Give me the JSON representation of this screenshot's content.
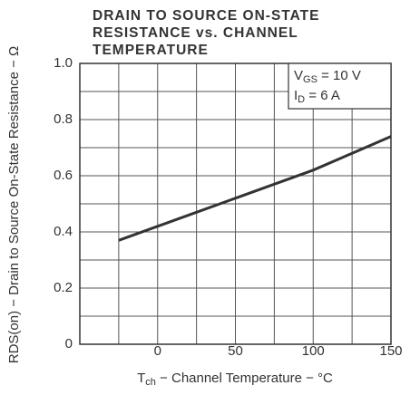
{
  "chart_data": {
    "type": "line",
    "title": [
      "DRAIN TO SOURCE ON-STATE",
      "RESISTANCE vs. CHANNEL",
      "TEMPERATURE"
    ],
    "xlabel": {
      "main": "T",
      "sub": "ch",
      "rest": " − Channel Temperature − °C"
    },
    "ylabel": "RDS(on) − Drain to Source On-State Resistance − Ω",
    "annotations": [
      {
        "main": "V",
        "sub": "GS",
        "rest": " = 10  V"
      },
      {
        "main": "I",
        "sub": "D",
        "rest": " = 6  A"
      }
    ],
    "x": [
      -25,
      0,
      25,
      50,
      75,
      100,
      125,
      150
    ],
    "series": [
      {
        "color": "#333333",
        "values": [
          0.37,
          0.42,
          0.47,
          0.52,
          0.57,
          0.62,
          0.68,
          0.74
        ]
      }
    ],
    "xlim": [
      -50,
      150
    ],
    "xticks": [
      0,
      50,
      100,
      150
    ],
    "xgrid": [
      -25,
      25,
      75,
      125
    ],
    "ylim": [
      0,
      1.0
    ],
    "yticks": [
      0,
      0.2,
      0.4,
      0.6,
      0.8,
      {
        "value": 1.0,
        "label": "1.0"
      }
    ],
    "ygrid": [
      0.1,
      0.3,
      0.5,
      0.7,
      0.9
    ],
    "grid": true
  }
}
